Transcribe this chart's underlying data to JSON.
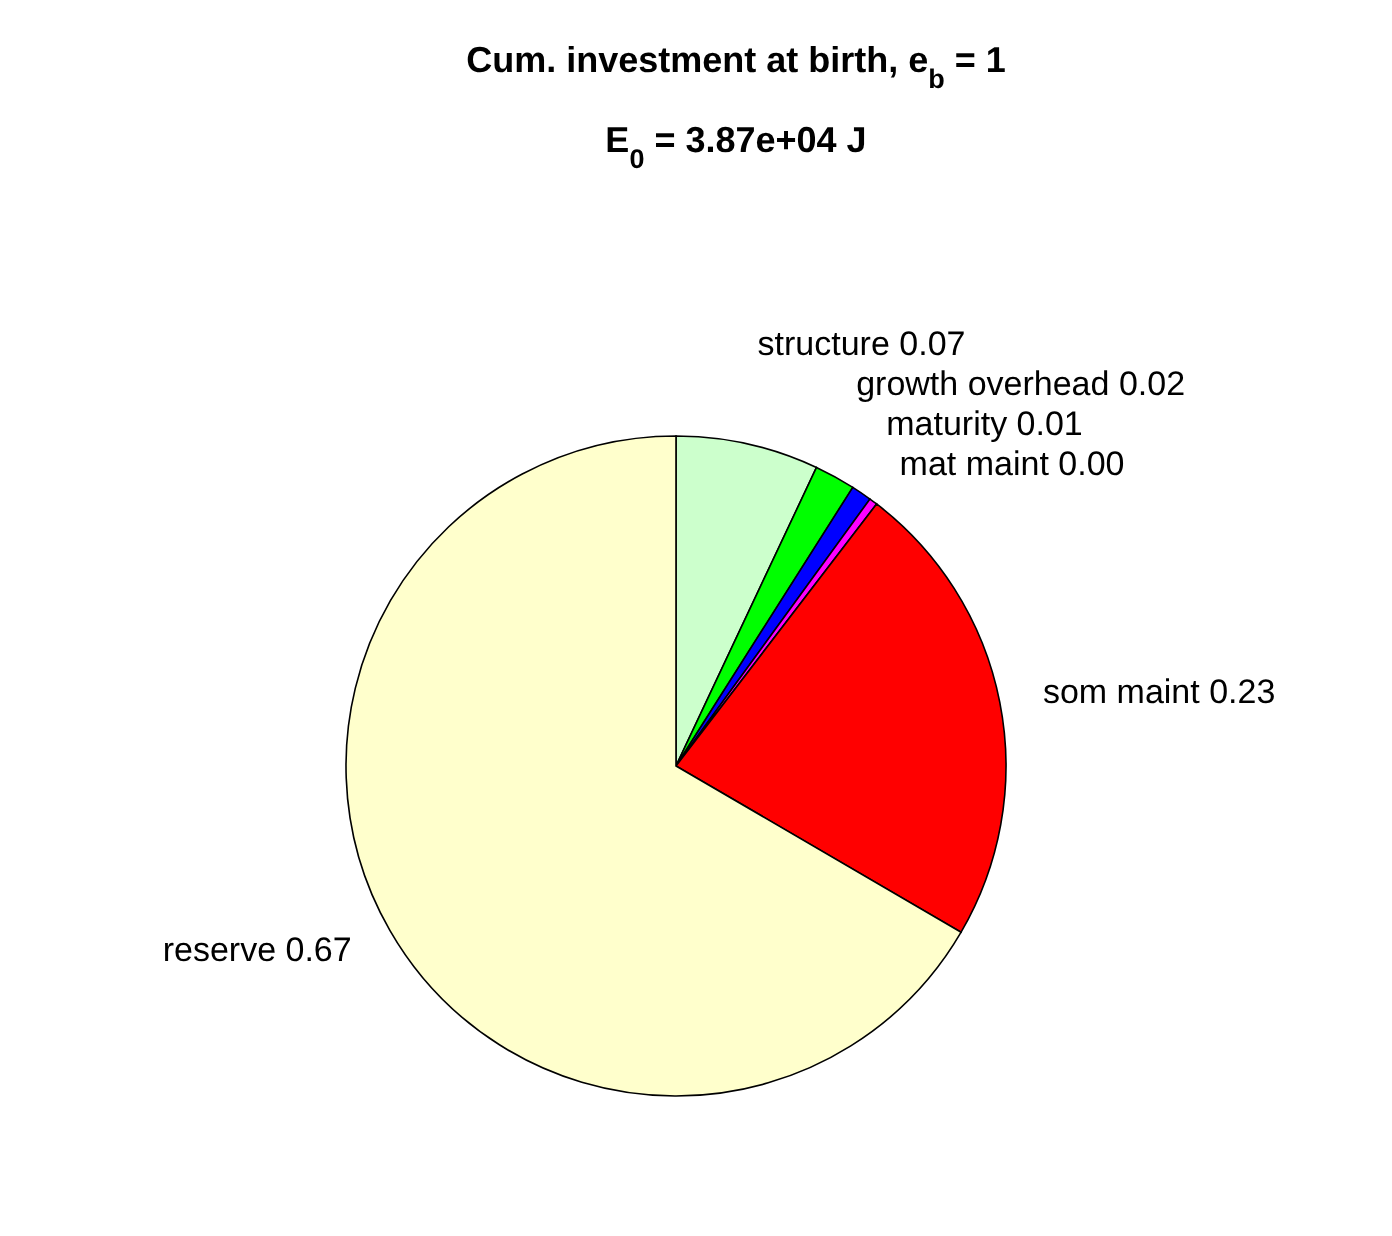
{
  "chart_data": {
    "type": "pie",
    "title": "Cum. investment at birth, e$_{b}$ = 1",
    "subtitle": "E$_{0}$ = 3.87e+04 J",
    "categories": [
      "structure",
      "growth overhead",
      "maturity",
      "mat maint",
      "som maint",
      "reserve"
    ],
    "values": [
      0.07,
      0.02,
      0.01,
      0.004,
      0.23,
      0.666
    ],
    "value_labels": [
      "0.07",
      "0.02",
      "0.01",
      "0.00",
      "0.23",
      "0.67"
    ],
    "colors": [
      "#ccffcc",
      "#00ff00",
      "#0000ff",
      "#ff00ff",
      "#ff0000",
      "#ffffcc"
    ]
  }
}
